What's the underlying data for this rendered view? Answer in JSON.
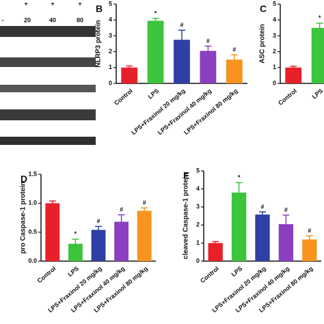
{
  "panel_a": {
    "row1": [
      "+",
      "+",
      "+"
    ],
    "row2": [
      "-",
      "20",
      "40",
      "80"
    ]
  },
  "chart_data": [
    {
      "type": "bar",
      "panel_label": "B",
      "ylabel": "NLRP3 protein",
      "categories": [
        "Control",
        "LPS",
        "LPS+Fraxinol 20 mg/kg",
        "LPS+Fraxinol 40 mg/kg",
        "LPS+Fraxinol 80 mg/kg"
      ],
      "values": [
        1.0,
        3.95,
        2.75,
        2.05,
        1.5
      ],
      "errors": [
        0.1,
        0.15,
        0.6,
        0.3,
        0.3
      ],
      "annotations": [
        null,
        "*",
        "#",
        "#",
        "#"
      ],
      "colors": [
        "#e8202a",
        "#3cc43c",
        "#2f3fa6",
        "#8a3fc0",
        "#f7931e"
      ],
      "ylim": [
        0,
        5
      ],
      "yticks": [
        0,
        1,
        2,
        3,
        4,
        5
      ]
    },
    {
      "type": "bar",
      "panel_label": "C",
      "ylabel": "ASC protein",
      "categories": [
        "Control",
        "LPS"
      ],
      "values": [
        1.0,
        3.5
      ],
      "errors": [
        0.08,
        0.3
      ],
      "annotations": [
        null,
        "*"
      ],
      "colors": [
        "#e8202a",
        "#3cc43c"
      ],
      "ylim": [
        0,
        5
      ],
      "yticks": [
        0,
        1,
        2,
        3,
        4,
        5
      ]
    },
    {
      "type": "bar",
      "panel_label": "D",
      "ylabel": "pro Caspase-1 protein",
      "categories": [
        "Control",
        "LPS",
        "LPS+Fraxinol 20 mg/kg",
        "LPS+Fraxinol 40 mg/kg",
        "LPS+Fraxinol 80 mg/kg"
      ],
      "values": [
        1.0,
        0.3,
        0.54,
        0.68,
        0.87
      ],
      "errors": [
        0.04,
        0.08,
        0.06,
        0.12,
        0.05
      ],
      "annotations": [
        null,
        "*",
        "#",
        "#",
        "#"
      ],
      "colors": [
        "#e8202a",
        "#3cc43c",
        "#2f3fa6",
        "#8a3fc0",
        "#f7931e"
      ],
      "ylim": [
        0,
        1.5
      ],
      "yticks": [
        {
          "value": 0,
          "label": "0.0"
        },
        0.5,
        {
          "value": 1,
          "label": "1.0"
        },
        1.5
      ]
    },
    {
      "type": "bar",
      "panel_label": "E",
      "ylabel": "cleaved Caspase-1 protein",
      "categories": [
        "Control",
        "LPS",
        "LPS+Fraxinol 20 mg/kg",
        "LPS+Fraxinol 40 mg/kg",
        "LPS+Fraxinol 80 mg/kg"
      ],
      "values": [
        1.0,
        3.8,
        2.58,
        2.05,
        1.2
      ],
      "errors": [
        0.08,
        0.55,
        0.15,
        0.5,
        0.2
      ],
      "annotations": [
        null,
        "*",
        "#",
        "#",
        "#"
      ],
      "colors": [
        "#e8202a",
        "#3cc43c",
        "#2f3fa6",
        "#8a3fc0",
        "#f7931e"
      ],
      "ylim": [
        0,
        5
      ],
      "yticks": [
        0,
        1,
        2,
        3,
        4,
        5
      ]
    }
  ]
}
